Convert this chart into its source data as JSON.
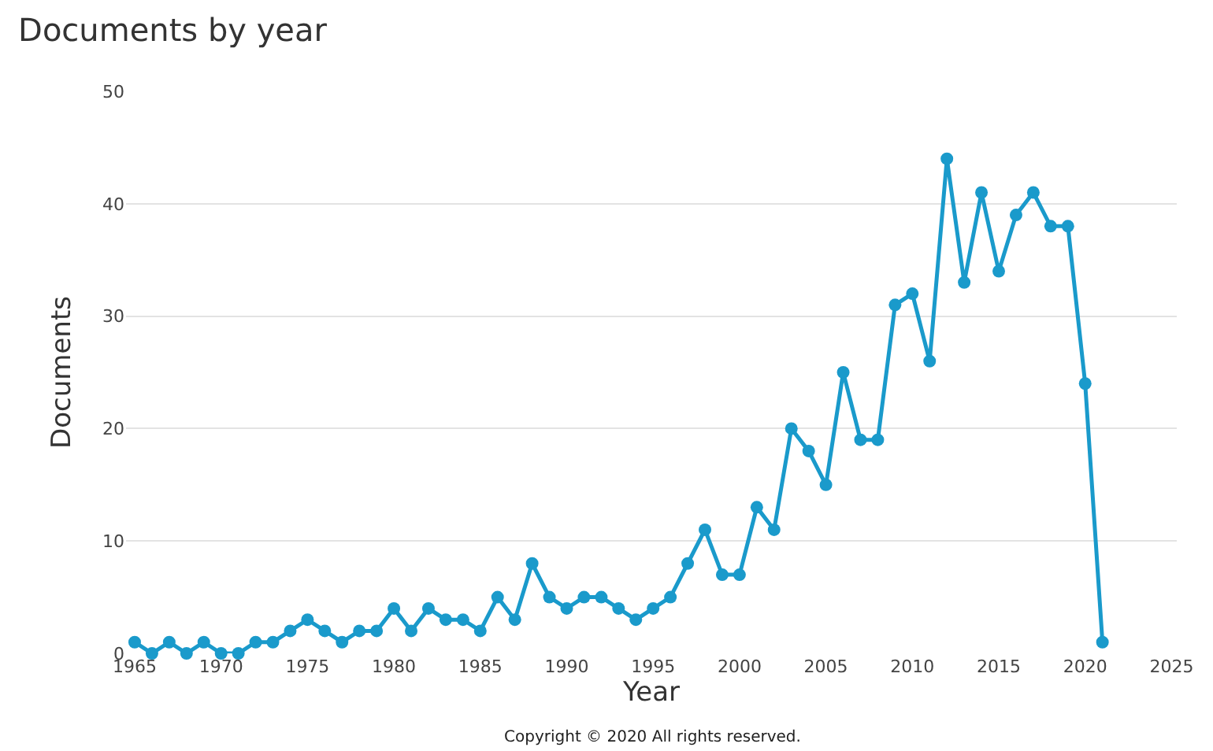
{
  "chart_data": {
    "type": "line",
    "title": "Documents by year",
    "xlabel": "Year",
    "ylabel": "Documents",
    "x": [
      1965,
      1966,
      1967,
      1968,
      1969,
      1970,
      1971,
      1972,
      1973,
      1974,
      1975,
      1976,
      1977,
      1978,
      1979,
      1980,
      1981,
      1982,
      1983,
      1984,
      1985,
      1986,
      1987,
      1988,
      1989,
      1990,
      1991,
      1992,
      1993,
      1994,
      1995,
      1996,
      1997,
      1998,
      1999,
      2000,
      2001,
      2002,
      2003,
      2004,
      2005,
      2006,
      2007,
      2008,
      2009,
      2010,
      2011,
      2012,
      2013,
      2014,
      2015,
      2016,
      2017,
      2018,
      2019,
      2020,
      2021
    ],
    "series": [
      {
        "color": "#1a9acb",
        "values": [
          1,
          0,
          1,
          0,
          1,
          0,
          0,
          1,
          1,
          2,
          3,
          2,
          1,
          2,
          2,
          4,
          2,
          4,
          3,
          3,
          2,
          5,
          3,
          8,
          5,
          4,
          5,
          5,
          4,
          3,
          4,
          5,
          8,
          11,
          7,
          7,
          13,
          11,
          20,
          18,
          15,
          25,
          19,
          19,
          31,
          32,
          26,
          44,
          33,
          41,
          34,
          39,
          41,
          38,
          38,
          24,
          1
        ]
      }
    ],
    "xlim": [
      1964.5,
      2025.3
    ],
    "xticks": [
      1965,
      1970,
      1975,
      1980,
      1985,
      1990,
      1995,
      2000,
      2005,
      2010,
      2015,
      2020,
      2025
    ],
    "ylim": [
      0,
      50
    ],
    "yticks": [
      0,
      10,
      20,
      30,
      40,
      50
    ],
    "grid": "y",
    "marker": "circle",
    "line_style": "solid",
    "annotations": [
      "Copyright © 2020 All rights reserved."
    ]
  }
}
